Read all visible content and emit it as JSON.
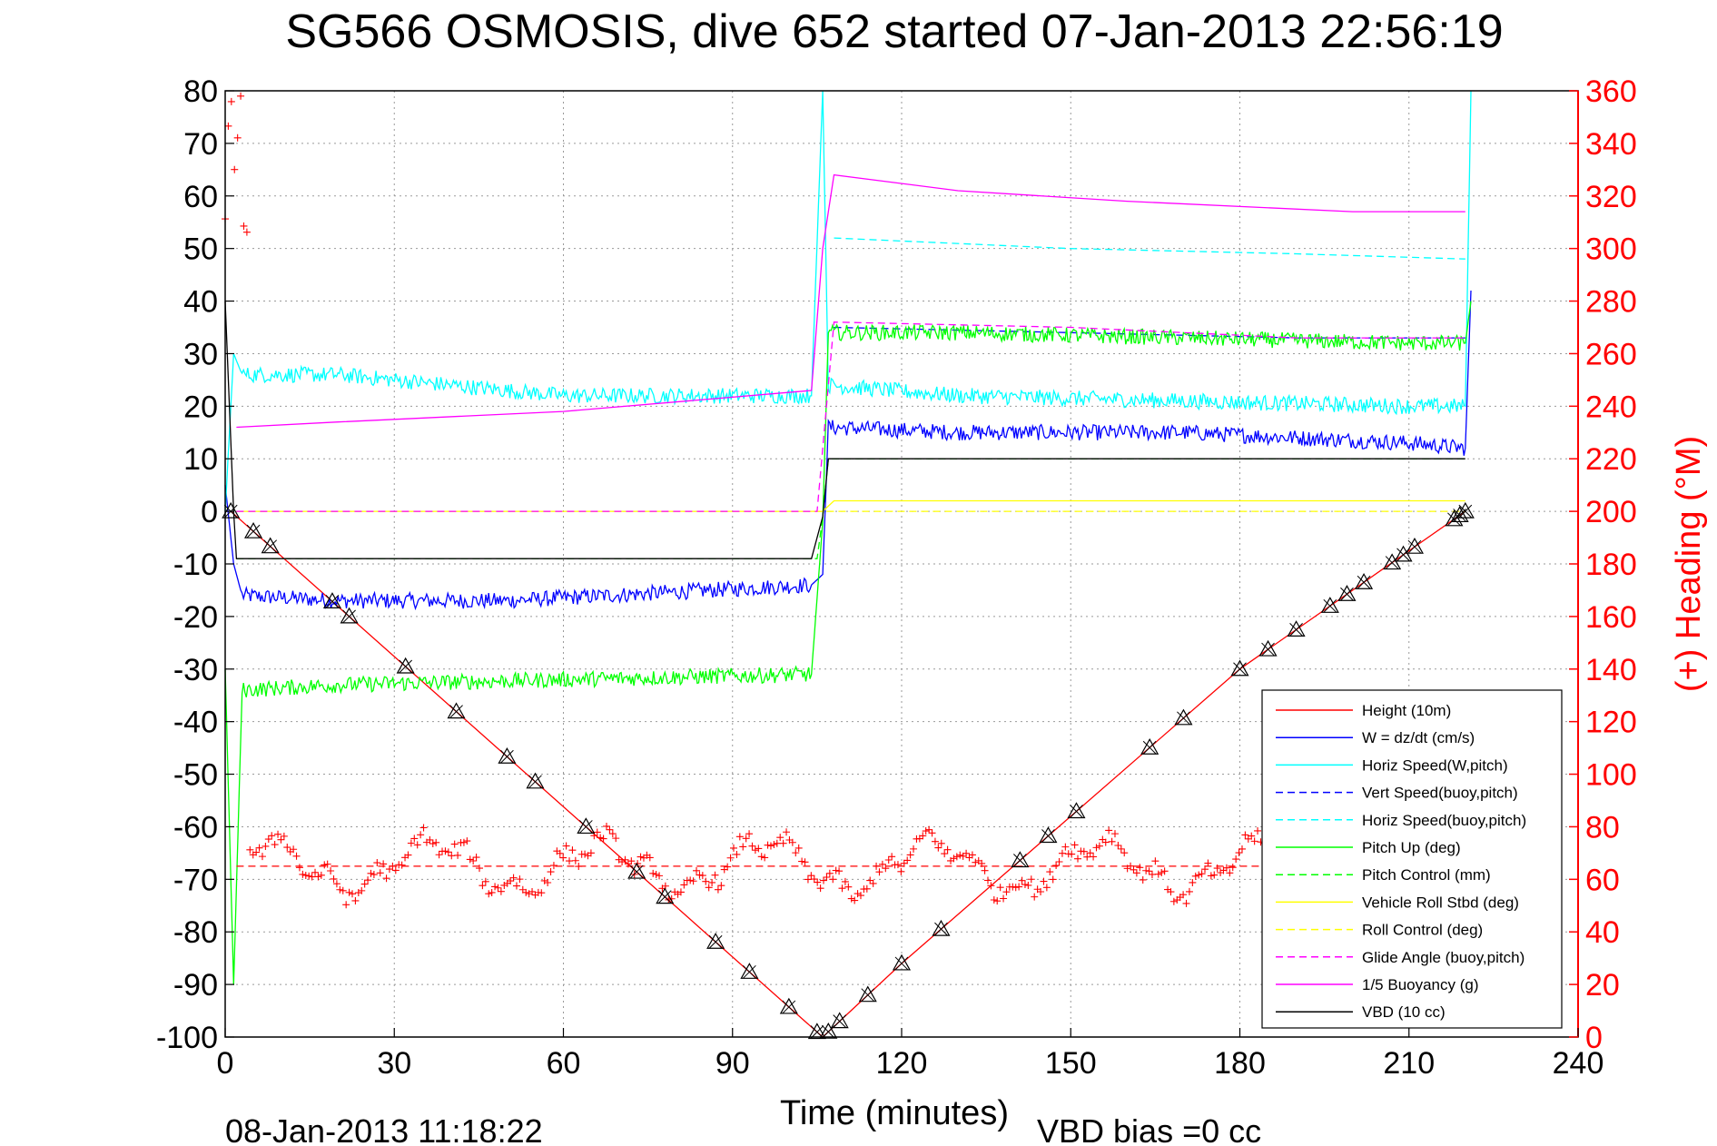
{
  "chart_data": {
    "type": "line",
    "title": "SG566 OSMOSIS, dive 652 started 07-Jan-2013 22:56:19",
    "xlabel": "Time (minutes)",
    "ylabel": "",
    "y2label": "(+) Heading (°M)",
    "footer_left": "08-Jan-2013 11:18:22",
    "footer_right": "VBD bias =0 cc",
    "xlim": [
      0,
      240
    ],
    "ylim": [
      -100,
      80
    ],
    "y2lim": [
      0,
      360
    ],
    "x_ticks": [
      "0",
      "30",
      "60",
      "90",
      "120",
      "150",
      "180",
      "210",
      "240"
    ],
    "y_ticks": [
      "80",
      "70",
      "60",
      "50",
      "40",
      "30",
      "20",
      "10",
      "0",
      "-10",
      "-20",
      "-30",
      "-40",
      "-50",
      "-60",
      "-70",
      "-80",
      "-90",
      "-100"
    ],
    "y2_ticks": [
      "360",
      "340",
      "320",
      "300",
      "280",
      "260",
      "240",
      "220",
      "200",
      "180",
      "160",
      "140",
      "120",
      "100",
      "80",
      "60",
      "40",
      "20",
      "0"
    ],
    "grid": true,
    "legend_position": "bottom-right",
    "colors": {
      "red": "#ff0000",
      "blue": "#0000ff",
      "cyan": "#00ffff",
      "green": "#00ff00",
      "yellow": "#ffff00",
      "magenta": "#ff00ff",
      "black": "#000000"
    },
    "series": [
      {
        "name": "Height (10m)",
        "color": "#ff0000",
        "style": "solid",
        "x": [
          1,
          106,
          120,
          150,
          180,
          220
        ],
        "y": [
          0,
          -100,
          -86,
          -58,
          -30,
          0
        ]
      },
      {
        "name": "W = dz/dt (cm/s)",
        "color": "#0000ff",
        "style": "solid",
        "x": [
          0,
          1.5,
          3,
          20,
          50,
          104,
          106,
          107,
          130,
          170,
          210,
          220,
          221
        ],
        "y": [
          5,
          -10,
          -16,
          -17,
          -17,
          -14,
          -12,
          16,
          15,
          15,
          13,
          12,
          42
        ]
      },
      {
        "name": "Horiz Speed(W,pitch)",
        "color": "#00ffff",
        "style": "solid",
        "x": [
          0,
          1.5,
          3,
          20,
          60,
          104,
          106,
          107,
          130,
          170,
          210,
          220,
          221
        ],
        "y": [
          0,
          30,
          26,
          26,
          22,
          22,
          80,
          24,
          22,
          21,
          20,
          20,
          80
        ]
      },
      {
        "name": "Vert Speed(buoy,pitch)",
        "color": "#0000ff",
        "style": "dashed",
        "x": [
          108,
          150,
          190,
          220
        ],
        "y": [
          35,
          34,
          33,
          33
        ]
      },
      {
        "name": "Horiz Speed(buoy,pitch)",
        "color": "#00ffff",
        "style": "dashed",
        "x": [
          108,
          150,
          190,
          220
        ],
        "y": [
          52,
          50,
          49,
          48
        ]
      },
      {
        "name": "Pitch Up (deg)",
        "color": "#00ff00",
        "style": "solid",
        "x": [
          0,
          1.5,
          3,
          20,
          60,
          104,
          106,
          107,
          130,
          170,
          210,
          220,
          221
        ],
        "y": [
          -30,
          -90,
          -34,
          -33,
          -32,
          -31,
          -2,
          34,
          34,
          33,
          32,
          32,
          40
        ]
      },
      {
        "name": "Pitch Control (mm)",
        "color": "#00ff00",
        "style": "dashed",
        "x": [
          2,
          105,
          106,
          107,
          220
        ],
        "y": [
          -9,
          -9,
          -1,
          10,
          10
        ]
      },
      {
        "name": "Vehicle Roll Stbd (deg)",
        "color": "#ffff00",
        "style": "solid",
        "x": [
          2,
          105,
          106,
          108,
          220
        ],
        "y": [
          0,
          0,
          0,
          2,
          2
        ]
      },
      {
        "name": "Roll Control (deg)",
        "color": "#ffff00",
        "style": "dashed",
        "x": [
          2,
          105,
          107,
          220
        ],
        "y": [
          0,
          0,
          0,
          0
        ]
      },
      {
        "name": "Glide Angle (buoy,pitch)",
        "color": "#ff00ff",
        "style": "dashed",
        "x": [
          2,
          105,
          108,
          150,
          190,
          220
        ],
        "y": [
          0,
          0,
          36,
          35,
          33,
          33
        ]
      },
      {
        "name": "1/5 Buoyancy (g)",
        "color": "#ff00ff",
        "style": "solid",
        "x": [
          2,
          20,
          60,
          104,
          106,
          108,
          130,
          160,
          200,
          220
        ],
        "y": [
          16,
          17,
          19,
          23,
          50,
          64,
          61,
          59,
          57,
          57
        ]
      },
      {
        "name": "VBD (10 cc)",
        "color": "#000000",
        "style": "solid",
        "x": [
          0,
          1.5,
          2,
          104,
          106,
          107,
          220
        ],
        "y": [
          40,
          0,
          -9,
          -9,
          -1,
          10,
          10
        ]
      }
    ],
    "heading_mean": 65,
    "heading_color": "#ff0000",
    "depth_markers_x": [
      1,
      5,
      8,
      19,
      22,
      32,
      41,
      50,
      55,
      64,
      73,
      78,
      87,
      93,
      100,
      105,
      107,
      109,
      114,
      120,
      127,
      141,
      146,
      151,
      164,
      170,
      180,
      185,
      190,
      196,
      199,
      202,
      207,
      209,
      211,
      218,
      219,
      220
    ],
    "legend_box": {
      "bg": "#ffffff",
      "border": "#000000"
    }
  }
}
